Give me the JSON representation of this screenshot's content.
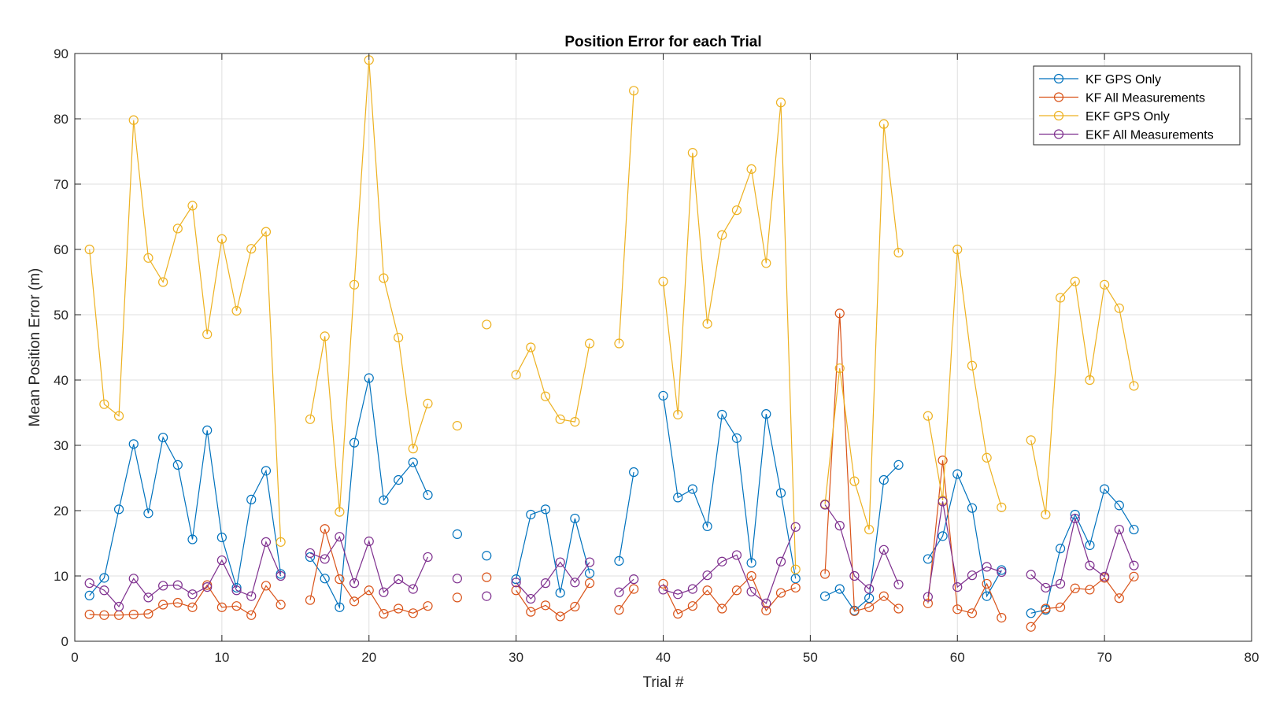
{
  "chart_data": {
    "type": "line",
    "title": "Position Error for each Trial",
    "xlabel": "Trial #",
    "ylabel": "Mean Position Error (m)",
    "xlim": [
      0,
      80
    ],
    "ylim": [
      0,
      90
    ],
    "xticks": [
      0,
      10,
      20,
      30,
      40,
      50,
      60,
      70,
      80
    ],
    "yticks": [
      0,
      10,
      20,
      30,
      40,
      50,
      60,
      70,
      80,
      90
    ],
    "grid": true,
    "legend_position": "top-right",
    "marker": "circle",
    "x": [
      1,
      2,
      3,
      4,
      5,
      6,
      7,
      8,
      9,
      10,
      11,
      12,
      13,
      14,
      15,
      16,
      17,
      18,
      19,
      20,
      21,
      22,
      23,
      24,
      25,
      26,
      27,
      28,
      29,
      30,
      31,
      32,
      33,
      34,
      35,
      36,
      37,
      38,
      39,
      40,
      41,
      42,
      43,
      44,
      45,
      46,
      47,
      48,
      49,
      50,
      51,
      52,
      53,
      54,
      55,
      56,
      57,
      58,
      59,
      60,
      61,
      62,
      63,
      64,
      65,
      66,
      67,
      68,
      69,
      70,
      71,
      72
    ],
    "series": [
      {
        "name": "KF GPS Only",
        "color": "#0072BD",
        "values": [
          7.0,
          9.7,
          20.2,
          30.2,
          19.6,
          31.2,
          27.0,
          15.6,
          32.3,
          15.9,
          8.2,
          21.7,
          26.1,
          10.3,
          null,
          12.9,
          9.6,
          5.2,
          30.4,
          40.3,
          21.6,
          24.7,
          27.4,
          22.4,
          null,
          16.4,
          null,
          13.1,
          null,
          9.5,
          19.4,
          20.2,
          7.4,
          18.8,
          10.4,
          null,
          12.3,
          25.9,
          null,
          37.6,
          22.0,
          23.3,
          17.6,
          34.7,
          31.1,
          12.0,
          34.8,
          22.7,
          9.6,
          null,
          6.9,
          8.0,
          4.7,
          6.6,
          24.7,
          27.0,
          null,
          12.6,
          16.1,
          25.6,
          20.4,
          6.9,
          10.9,
          null,
          4.3,
          4.8,
          14.2,
          19.4,
          14.7,
          23.3,
          20.8,
          17.1
        ]
      },
      {
        "name": "KF All Measurements",
        "color": "#D95319",
        "values": [
          4.1,
          4.0,
          4.0,
          4.1,
          4.2,
          5.6,
          5.9,
          5.2,
          8.6,
          5.2,
          5.4,
          4.0,
          8.5,
          5.6,
          null,
          6.3,
          17.2,
          9.5,
          6.1,
          7.8,
          4.2,
          5.0,
          4.3,
          5.4,
          null,
          6.7,
          null,
          9.8,
          null,
          7.8,
          4.5,
          5.5,
          3.8,
          5.3,
          8.9,
          null,
          4.8,
          8.0,
          null,
          8.8,
          4.2,
          5.4,
          7.8,
          5.0,
          7.8,
          10.0,
          4.7,
          7.4,
          8.2,
          null,
          10.3,
          50.2,
          4.6,
          5.2,
          6.9,
          5.0,
          null,
          5.8,
          27.7,
          4.9,
          4.3,
          8.8,
          3.6,
          null,
          2.2,
          5.0,
          5.2,
          8.1,
          7.9,
          9.7,
          6.6,
          9.9
        ]
      },
      {
        "name": "EKF GPS Only",
        "color": "#EDB120",
        "values": [
          60.0,
          36.3,
          34.5,
          79.8,
          58.7,
          55.0,
          63.2,
          66.7,
          47.0,
          61.6,
          50.6,
          60.1,
          62.7,
          15.2,
          null,
          34.0,
          46.7,
          19.8,
          54.6,
          89.0,
          55.6,
          46.5,
          29.5,
          36.4,
          null,
          33.0,
          null,
          48.5,
          null,
          40.8,
          45.0,
          37.5,
          34.0,
          33.6,
          45.6,
          null,
          45.6,
          84.3,
          null,
          55.1,
          34.7,
          74.8,
          48.6,
          62.2,
          66.0,
          72.3,
          57.9,
          82.5,
          11.0,
          null,
          21.0,
          41.8,
          24.5,
          17.1,
          79.2,
          59.5,
          null,
          34.5,
          21.6,
          60.0,
          42.2,
          28.1,
          20.5,
          null,
          30.8,
          19.4,
          52.6,
          55.1,
          40.0,
          54.6,
          51.0,
          39.1
        ]
      },
      {
        "name": "EKF All Measurements",
        "color": "#7E2F8E",
        "values": [
          8.9,
          7.8,
          5.3,
          9.6,
          6.7,
          8.5,
          8.6,
          7.2,
          8.3,
          12.4,
          7.8,
          6.9,
          15.2,
          10.0,
          null,
          13.5,
          12.6,
          16.0,
          8.9,
          15.3,
          7.5,
          9.5,
          8.0,
          12.9,
          null,
          9.6,
          null,
          6.9,
          null,
          9.0,
          6.5,
          8.9,
          12.1,
          9.0,
          12.1,
          null,
          7.5,
          9.5,
          null,
          7.9,
          7.2,
          8.0,
          10.1,
          12.2,
          13.2,
          7.6,
          5.8,
          12.2,
          17.5,
          null,
          20.9,
          17.7,
          10.0,
          8.0,
          14.0,
          8.7,
          null,
          6.8,
          21.4,
          8.3,
          10.1,
          11.4,
          10.6,
          null,
          10.2,
          8.2,
          8.8,
          18.8,
          11.6,
          9.9,
          17.1,
          11.6
        ]
      }
    ]
  }
}
